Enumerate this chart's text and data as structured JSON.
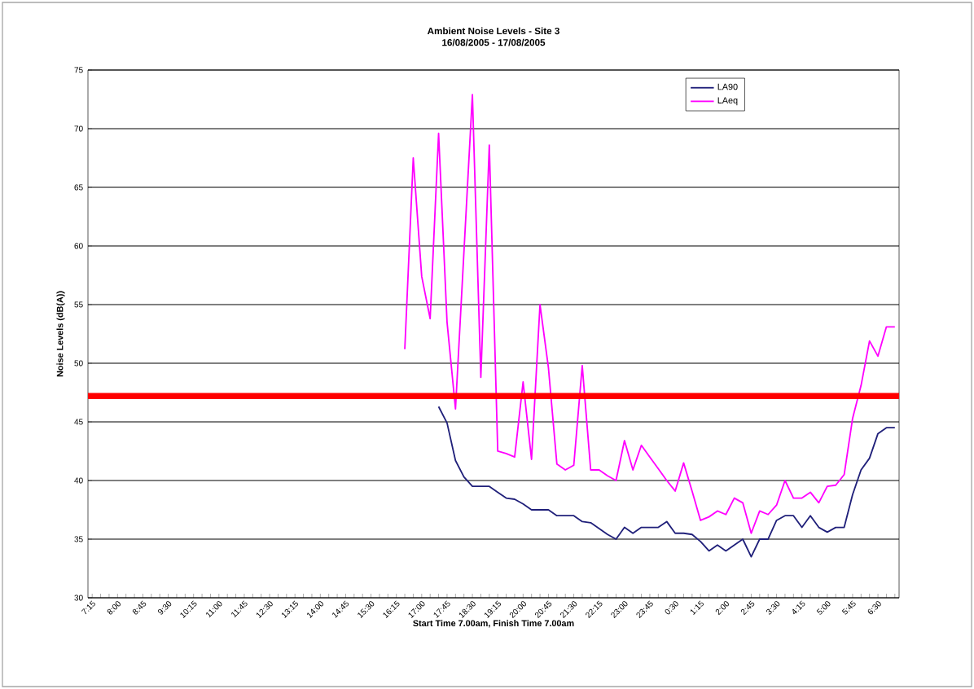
{
  "chart_data": {
    "type": "line",
    "title": "Ambient Noise Levels - Site 3",
    "subtitle": "16/08/2005 - 17/08/2005",
    "xlabel": "Start Time 7.00am, Finish Time 7.00am",
    "ylabel": "Noise Levels (dB(A))",
    "categories": [
      "7:15",
      null,
      null,
      "8:00",
      null,
      null,
      "8:45",
      null,
      null,
      "9:30",
      null,
      null,
      "10:15",
      null,
      null,
      "11:00",
      null,
      null,
      "11:45",
      null,
      null,
      "12:30",
      null,
      null,
      "13:15",
      null,
      null,
      "14:00",
      null,
      null,
      "14:45",
      null,
      null,
      "15:30",
      null,
      null,
      "16:15",
      null,
      null,
      "17:00",
      null,
      null,
      "17:45",
      null,
      null,
      "18:30",
      null,
      null,
      "19:15",
      null,
      null,
      "20:00",
      null,
      null,
      "20:45",
      null,
      null,
      "21:30",
      null,
      null,
      "22:15",
      null,
      null,
      "23:00",
      null,
      null,
      "23:45",
      null,
      null,
      "0:30",
      null,
      null,
      "1:15",
      null,
      null,
      "2:00",
      null,
      null,
      "2:45",
      null,
      null,
      "3:30",
      null,
      null,
      "4:15",
      null,
      null,
      "5:00",
      null,
      null,
      "5:45",
      null,
      null,
      "6:30",
      null,
      null
    ],
    "series": [
      {
        "name": "LA90",
        "color": "#20207a",
        "values": [
          null,
          null,
          null,
          null,
          null,
          null,
          null,
          null,
          null,
          null,
          null,
          null,
          null,
          null,
          null,
          null,
          null,
          null,
          null,
          null,
          null,
          null,
          null,
          null,
          null,
          null,
          null,
          null,
          null,
          null,
          null,
          null,
          null,
          null,
          null,
          null,
          null,
          null,
          null,
          null,
          null,
          46.3,
          44.9,
          41.7,
          40.3,
          39.5,
          39.5,
          39.5,
          39.0,
          38.5,
          38.4,
          38.0,
          37.5,
          37.5,
          37.5,
          37.0,
          37.0,
          37.0,
          36.5,
          36.4,
          35.9,
          35.4,
          35.0,
          36.0,
          35.5,
          36.0,
          36.0,
          36.0,
          36.5,
          35.5,
          35.5,
          35.4,
          34.8,
          34.0,
          34.5,
          34.0,
          34.5,
          35.0,
          33.5,
          35.0,
          35.0,
          36.6,
          37.0,
          37.0,
          36.0,
          37.0,
          36.0,
          35.6,
          36.0,
          36.0,
          38.8,
          40.9,
          41.9,
          44.0,
          44.5,
          44.5
        ]
      },
      {
        "name": "LAeq",
        "color": "#ff00ff",
        "values": [
          null,
          null,
          null,
          null,
          null,
          null,
          null,
          null,
          null,
          null,
          null,
          null,
          null,
          null,
          null,
          null,
          null,
          null,
          null,
          null,
          null,
          null,
          null,
          null,
          null,
          null,
          null,
          null,
          null,
          null,
          null,
          null,
          null,
          null,
          null,
          null,
          null,
          51.2,
          67.5,
          57.4,
          53.8,
          69.6,
          53.5,
          46.1,
          59.5,
          72.9,
          48.8,
          68.6,
          42.5,
          42.3,
          42.0,
          48.4,
          41.8,
          55.0,
          49.6,
          41.4,
          40.9,
          41.3,
          49.8,
          40.9,
          40.9,
          40.4,
          40.0,
          43.4,
          40.9,
          43.0,
          42.0,
          41.0,
          40.0,
          39.1,
          41.5,
          39.1,
          36.6,
          36.9,
          37.4,
          37.1,
          38.5,
          38.1,
          35.5,
          37.4,
          37.1,
          37.9,
          40.0,
          38.5,
          38.5,
          39.0,
          38.1,
          39.5,
          39.6,
          40.5,
          45.3,
          48.1,
          51.9,
          50.6,
          53.1,
          53.1
        ]
      }
    ],
    "ylim": [
      30,
      75
    ],
    "yticks": [
      30,
      35,
      40,
      45,
      50,
      55,
      60,
      65,
      70,
      75
    ],
    "ref_lines": [
      {
        "axis": "y",
        "value": 47.2,
        "color": "#ff0000"
      }
    ],
    "grid": "y",
    "legend": "top right",
    "marker": "none",
    "line_style": "solid"
  }
}
